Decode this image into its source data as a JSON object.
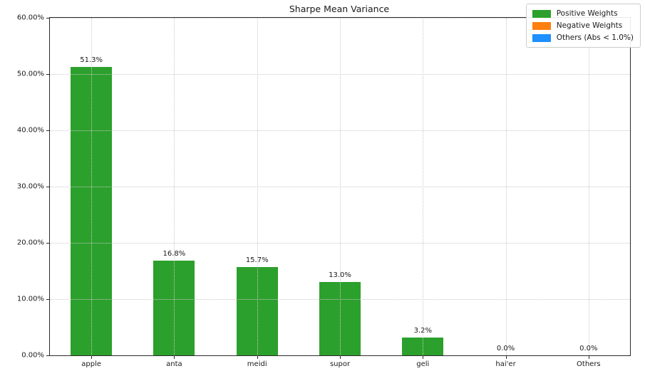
{
  "figure": {
    "title": "Sharpe Mean Variance",
    "background_color": "#ffffff",
    "text_color": "#1a1a1a",
    "grid_color": "#c8c8c8",
    "spine_color": "#2b2b2b"
  },
  "chart_data": {
    "type": "bar",
    "title": "Sharpe Mean Variance",
    "categories": [
      "apple",
      "anta",
      "meidi",
      "supor",
      "geli",
      "hai'er",
      "Others"
    ],
    "values": [
      51.3,
      16.8,
      15.7,
      13.0,
      3.2,
      0.0,
      0.0
    ],
    "bar_value_labels": [
      "51.3%",
      "16.8%",
      "15.7%",
      "13.0%",
      "3.2%",
      "0.0%",
      "0.0%"
    ],
    "bar_color": "#2ca02c",
    "xlabel": "",
    "ylabel": "",
    "ylim": [
      0,
      60
    ],
    "yticks": [
      0,
      10,
      20,
      30,
      40,
      50,
      60
    ],
    "ytick_labels": [
      "0.00%",
      "10.00%",
      "20.00%",
      "30.00%",
      "40.00%",
      "50.00%",
      "60.00%"
    ],
    "grid": true,
    "grid_style": "dotted",
    "legend": {
      "position": "upper right",
      "entries": [
        {
          "label": "Positive Weights",
          "color": "#2ca02c"
        },
        {
          "label": "Negative Weights",
          "color": "#ff7f0e"
        },
        {
          "label": "Others (Abs < 1.0%)",
          "color": "#1e90ff"
        }
      ]
    }
  }
}
